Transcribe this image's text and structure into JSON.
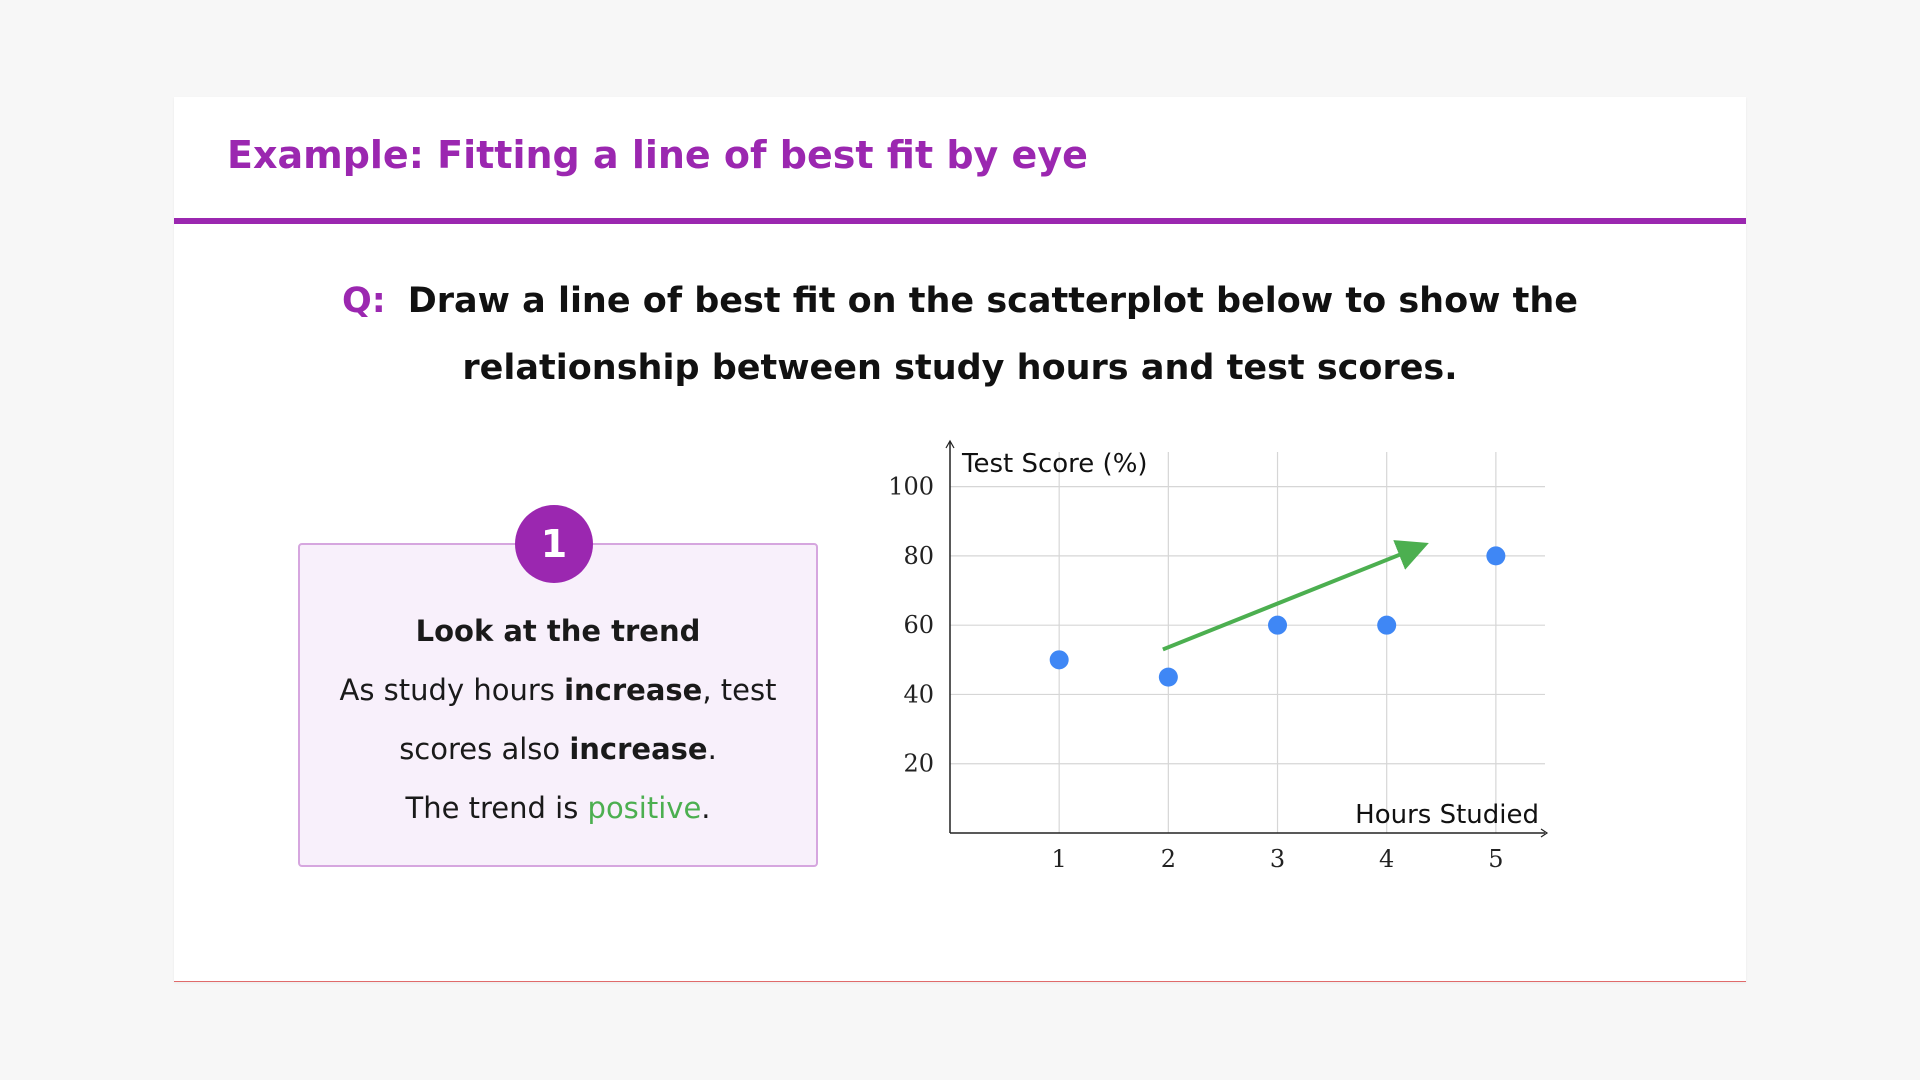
{
  "header": {
    "title": "Example: Fitting a line of best fit by eye"
  },
  "question": {
    "label": "Q:",
    "line1": "Draw a line of best fit on the scatterplot below to show the",
    "line2": "relationship between study hours and test scores."
  },
  "step": {
    "number": "1",
    "heading": "Look at the trend",
    "line1_a": "As study hours ",
    "line1_b": "increase",
    "line1_c": ", test",
    "line2_a": "scores also ",
    "line2_b": "increase",
    "line2_c": ".",
    "line3_a": "The trend is ",
    "line3_b": "positive",
    "line3_c": "."
  },
  "colors": {
    "accent": "#9b27b0",
    "points": "#3f87f5",
    "arrow": "#4caf50",
    "positive_text": "#4caf50"
  },
  "chart_data": {
    "type": "scatter",
    "xlabel": "Hours Studied",
    "ylabel": "Test Score (%)",
    "xticks": [
      1,
      2,
      3,
      4,
      5
    ],
    "yticks": [
      20,
      40,
      60,
      80,
      100
    ],
    "xlim": [
      0,
      5.45
    ],
    "ylim": [
      0,
      110
    ],
    "grid": true,
    "points": [
      {
        "x": 1,
        "y": 50
      },
      {
        "x": 2,
        "y": 45
      },
      {
        "x": 3,
        "y": 60
      },
      {
        "x": 4,
        "y": 60
      },
      {
        "x": 5,
        "y": 80
      }
    ],
    "trend_arrow": {
      "x1": 1.95,
      "y1": 53,
      "x2": 4.25,
      "y2": 82
    }
  }
}
